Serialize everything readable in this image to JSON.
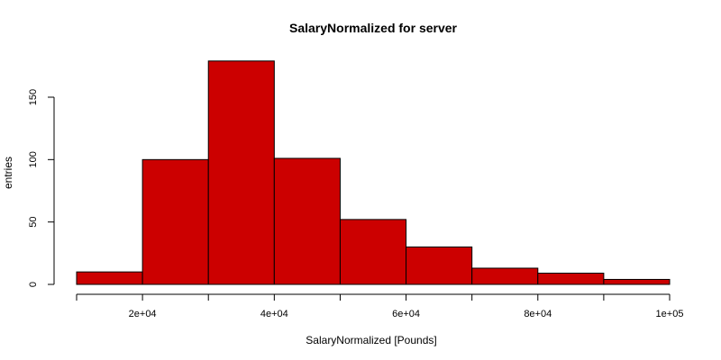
{
  "chart_data": {
    "type": "bar",
    "title": "SalaryNormalized for server",
    "xlabel": "SalaryNormalized [Pounds]",
    "ylabel": "entries",
    "bins": [
      {
        "from": 10000,
        "to": 20000,
        "count": 10
      },
      {
        "from": 20000,
        "to": 30000,
        "count": 100
      },
      {
        "from": 30000,
        "to": 40000,
        "count": 179
      },
      {
        "from": 40000,
        "to": 50000,
        "count": 101
      },
      {
        "from": 50000,
        "to": 60000,
        "count": 52
      },
      {
        "from": 60000,
        "to": 70000,
        "count": 30
      },
      {
        "from": 70000,
        "to": 80000,
        "count": 13
      },
      {
        "from": 80000,
        "to": 90000,
        "count": 9
      },
      {
        "from": 90000,
        "to": 100000,
        "count": 4
      }
    ],
    "xlim": [
      10000,
      100000
    ],
    "ylim": [
      0,
      180
    ],
    "xticks": [
      {
        "value": 20000,
        "label": "2e+04"
      },
      {
        "value": 40000,
        "label": "4e+04"
      },
      {
        "value": 60000,
        "label": "6e+04"
      },
      {
        "value": 80000,
        "label": "8e+04"
      },
      {
        "value": 100000,
        "label": "1e+05"
      }
    ],
    "xticks_unlabeled": [
      10000,
      30000,
      50000,
      70000,
      90000
    ],
    "yticks": [
      {
        "value": 0,
        "label": "0"
      },
      {
        "value": 50,
        "label": "50"
      },
      {
        "value": 100,
        "label": "100"
      },
      {
        "value": 150,
        "label": "150"
      }
    ],
    "bar_color": "#cc0000",
    "grid": false
  }
}
